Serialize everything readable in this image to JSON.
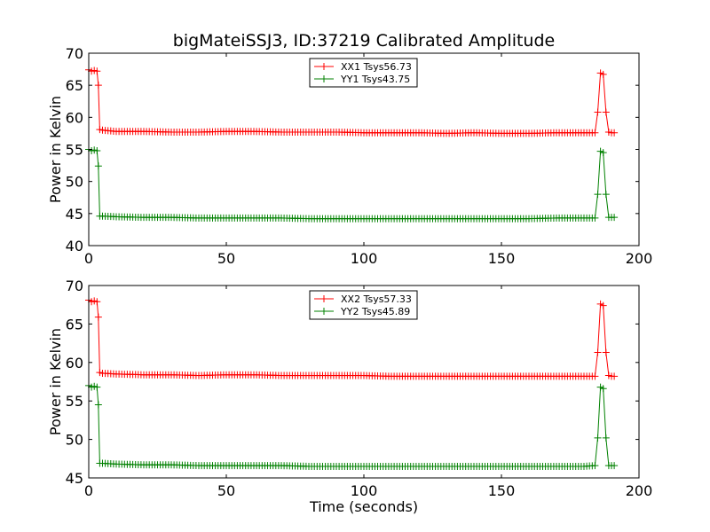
{
  "figure": {
    "title": "bigMateiSSJ3, ID:37219 Calibrated Amplitude",
    "colors": {
      "xx": "#ff0000",
      "yy": "#008000"
    }
  },
  "chart_data": [
    {
      "type": "line",
      "title": "bigMateiSSJ3, ID:37219 Calibrated Amplitude",
      "xlabel": "",
      "ylabel": "Power in Kelvin",
      "xlim": [
        0,
        200
      ],
      "ylim": [
        40,
        70
      ],
      "xticks": [
        0,
        50,
        100,
        150,
        200
      ],
      "yticks": [
        40,
        45,
        50,
        55,
        60,
        65,
        70
      ],
      "legend": "top-center",
      "grid": false,
      "series": [
        {
          "name": "XX1 Tsys56.73",
          "color": "#ff0000",
          "x": [
            0,
            1,
            2,
            3,
            3.5,
            4,
            5,
            10,
            20,
            30,
            40,
            50,
            60,
            70,
            80,
            90,
            100,
            110,
            120,
            130,
            140,
            150,
            160,
            170,
            180,
            184,
            185,
            186,
            187,
            188,
            189,
            190,
            191
          ],
          "y": [
            67.4,
            67.2,
            67.3,
            67.2,
            65.0,
            58.1,
            58.0,
            57.8,
            57.8,
            57.7,
            57.7,
            57.8,
            57.8,
            57.7,
            57.7,
            57.7,
            57.6,
            57.6,
            57.6,
            57.5,
            57.6,
            57.5,
            57.5,
            57.6,
            57.6,
            57.6,
            60.8,
            66.9,
            66.7,
            60.8,
            57.7,
            57.6,
            57.6
          ]
        },
        {
          "name": "YY1 Tsys43.75",
          "color": "#008000",
          "x": [
            0,
            1,
            2,
            3,
            3.5,
            4,
            5,
            10,
            20,
            30,
            40,
            50,
            60,
            70,
            80,
            90,
            100,
            110,
            120,
            130,
            140,
            150,
            160,
            170,
            180,
            184,
            185,
            186,
            187,
            188,
            189,
            190,
            191
          ],
          "y": [
            55.0,
            54.8,
            54.9,
            54.8,
            52.4,
            44.6,
            44.6,
            44.5,
            44.4,
            44.4,
            44.3,
            44.3,
            44.3,
            44.3,
            44.2,
            44.2,
            44.2,
            44.2,
            44.2,
            44.2,
            44.2,
            44.2,
            44.2,
            44.3,
            44.3,
            44.3,
            48.0,
            54.7,
            54.5,
            48.0,
            44.4,
            44.4,
            44.4
          ]
        }
      ]
    },
    {
      "type": "line",
      "title": "",
      "xlabel": "Time (seconds)",
      "ylabel": "Power in Kelvin",
      "xlim": [
        0,
        200
      ],
      "ylim": [
        45,
        70
      ],
      "xticks": [
        0,
        50,
        100,
        150,
        200
      ],
      "yticks": [
        45,
        50,
        55,
        60,
        65,
        70
      ],
      "legend": "top-center",
      "grid": false,
      "series": [
        {
          "name": "XX2 Tsys57.33",
          "color": "#ff0000",
          "x": [
            0,
            1,
            2,
            3,
            3.5,
            4,
            5,
            10,
            20,
            30,
            40,
            50,
            60,
            70,
            80,
            90,
            100,
            110,
            120,
            130,
            140,
            150,
            160,
            170,
            180,
            184,
            185,
            186,
            187,
            188,
            189,
            190,
            191
          ],
          "y": [
            68.1,
            67.9,
            68.0,
            67.9,
            65.9,
            58.7,
            58.6,
            58.5,
            58.4,
            58.4,
            58.3,
            58.4,
            58.4,
            58.3,
            58.3,
            58.3,
            58.3,
            58.2,
            58.2,
            58.2,
            58.2,
            58.2,
            58.2,
            58.2,
            58.2,
            58.2,
            61.3,
            67.6,
            67.4,
            61.3,
            58.3,
            58.2,
            58.2
          ]
        },
        {
          "name": "YY2 Tsys45.89",
          "color": "#008000",
          "x": [
            0,
            1,
            2,
            3,
            3.5,
            4,
            5,
            10,
            20,
            30,
            40,
            50,
            60,
            70,
            80,
            90,
            100,
            110,
            120,
            130,
            140,
            150,
            160,
            170,
            180,
            184,
            185,
            186,
            187,
            188,
            189,
            190,
            191
          ],
          "y": [
            57.0,
            56.8,
            56.9,
            56.8,
            54.5,
            46.9,
            46.9,
            46.8,
            46.7,
            46.7,
            46.6,
            46.6,
            46.6,
            46.6,
            46.5,
            46.5,
            46.5,
            46.5,
            46.5,
            46.5,
            46.5,
            46.5,
            46.5,
            46.5,
            46.5,
            46.6,
            50.2,
            56.8,
            56.6,
            50.2,
            46.6,
            46.6,
            46.6
          ]
        }
      ]
    }
  ]
}
